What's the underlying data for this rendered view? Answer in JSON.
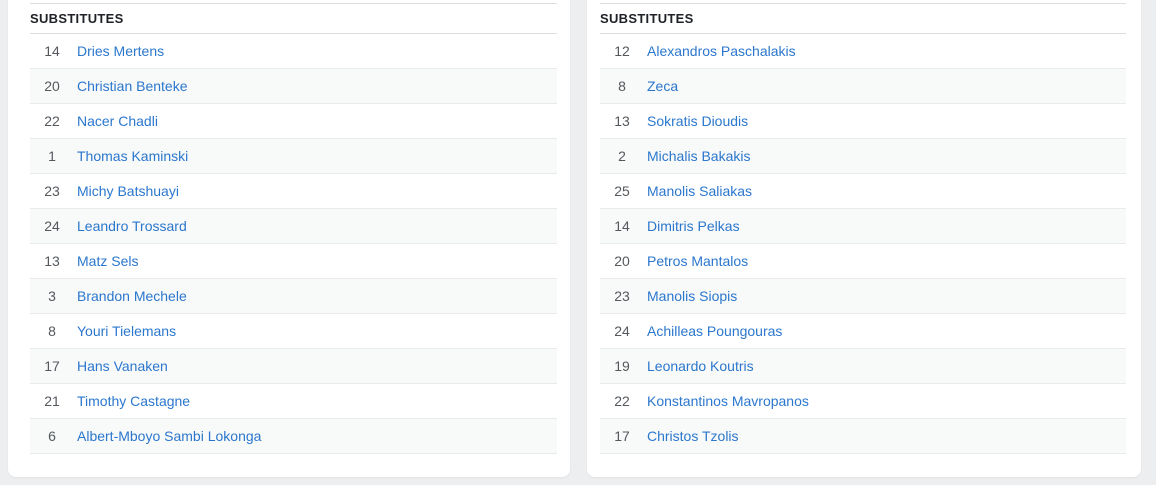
{
  "colors": {
    "page_bg": "#edeef0",
    "link": "#2b77cd",
    "number_text": "#54585d",
    "stripe": "#f8f9f9"
  },
  "panels": [
    {
      "title": "SUBSTITUTES",
      "players": [
        {
          "number": "14",
          "name": "Dries Mertens"
        },
        {
          "number": "20",
          "name": "Christian Benteke"
        },
        {
          "number": "22",
          "name": "Nacer Chadli"
        },
        {
          "number": "1",
          "name": "Thomas Kaminski"
        },
        {
          "number": "23",
          "name": "Michy Batshuayi"
        },
        {
          "number": "24",
          "name": "Leandro Trossard"
        },
        {
          "number": "13",
          "name": "Matz Sels"
        },
        {
          "number": "3",
          "name": "Brandon Mechele"
        },
        {
          "number": "8",
          "name": "Youri Tielemans"
        },
        {
          "number": "17",
          "name": "Hans Vanaken"
        },
        {
          "number": "21",
          "name": "Timothy Castagne"
        },
        {
          "number": "6",
          "name": "Albert-Mboyo Sambi Lokonga"
        }
      ]
    },
    {
      "title": "SUBSTITUTES",
      "players": [
        {
          "number": "12",
          "name": "Alexandros Paschalakis"
        },
        {
          "number": "8",
          "name": "Zeca"
        },
        {
          "number": "13",
          "name": "Sokratis Dioudis"
        },
        {
          "number": "2",
          "name": "Michalis Bakakis"
        },
        {
          "number": "25",
          "name": "Manolis Saliakas"
        },
        {
          "number": "14",
          "name": "Dimitris Pelkas"
        },
        {
          "number": "20",
          "name": "Petros Mantalos"
        },
        {
          "number": "23",
          "name": "Manolis Siopis"
        },
        {
          "number": "24",
          "name": "Achilleas Poungouras"
        },
        {
          "number": "19",
          "name": "Leonardo Koutris"
        },
        {
          "number": "22",
          "name": "Konstantinos Mavropanos"
        },
        {
          "number": "17",
          "name": "Christos Tzolis"
        }
      ]
    }
  ]
}
